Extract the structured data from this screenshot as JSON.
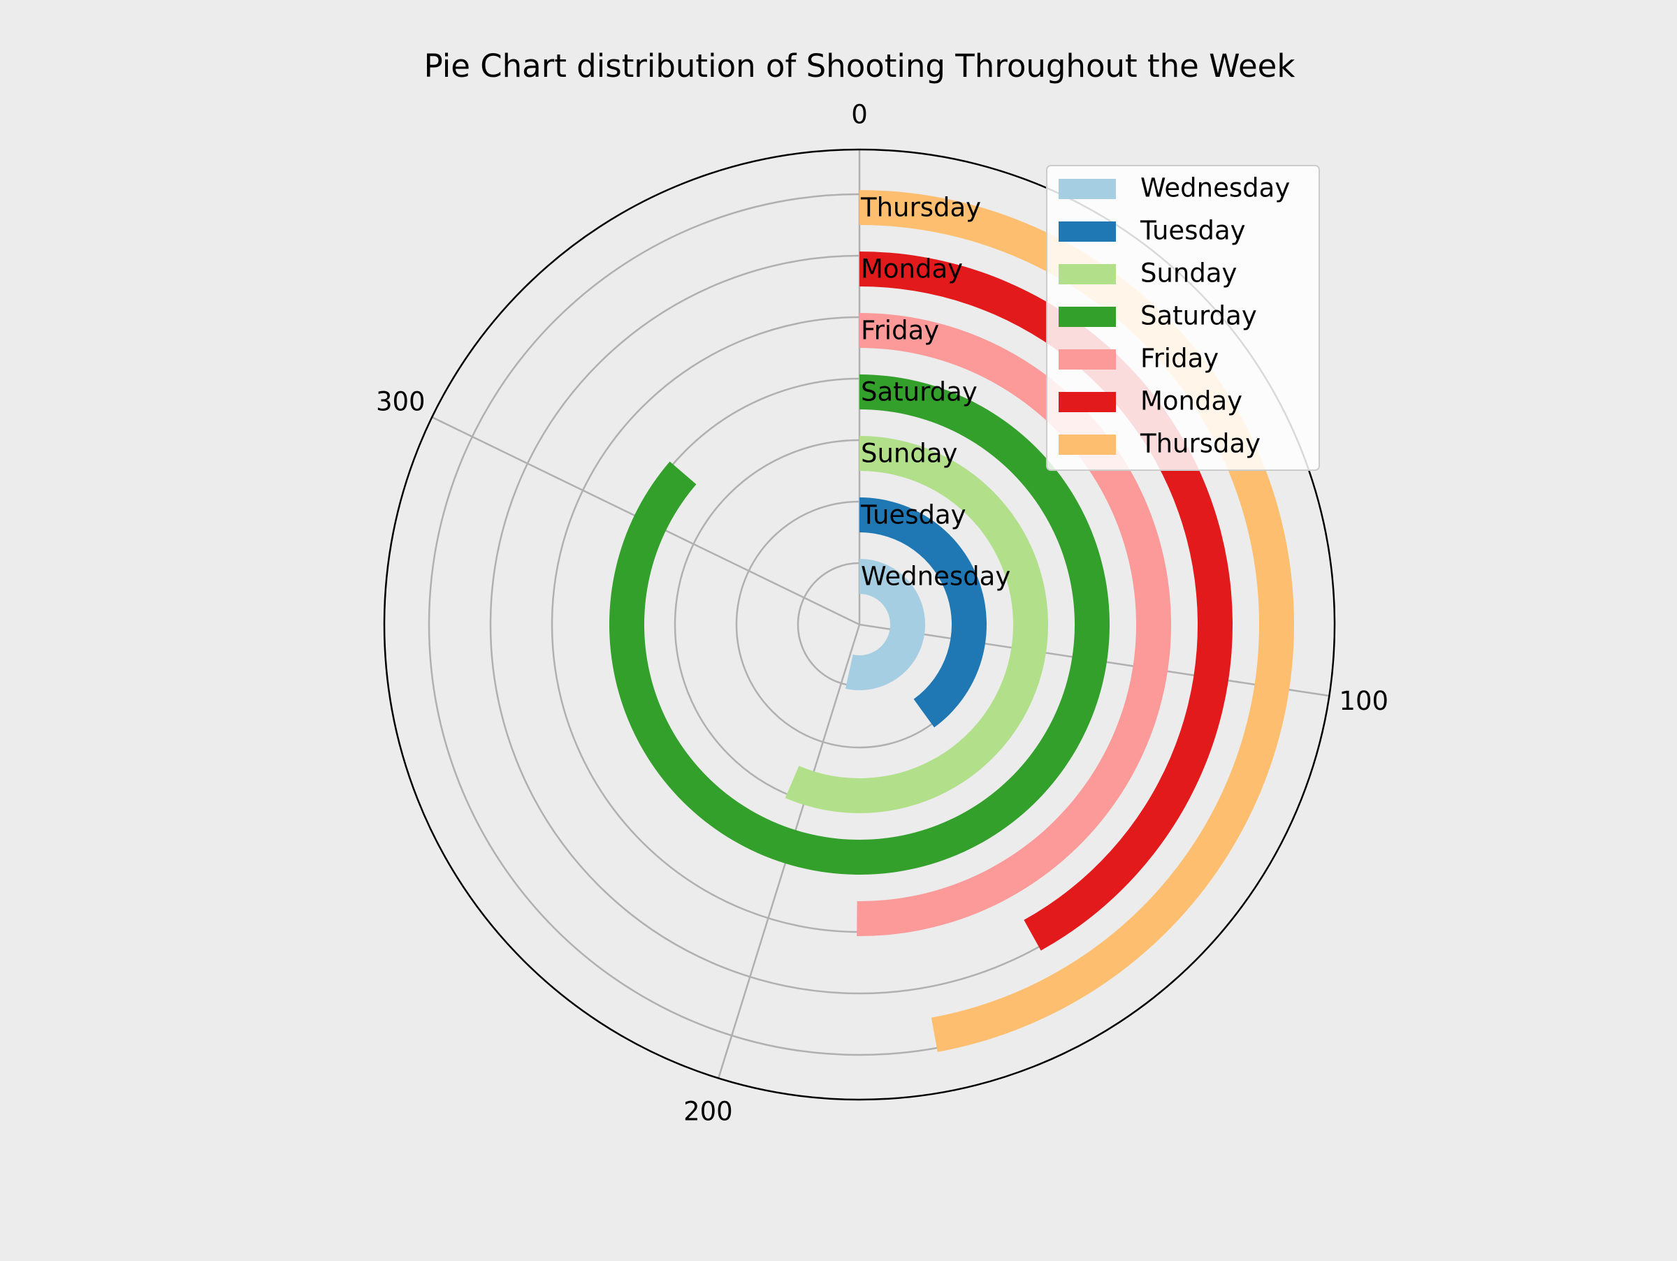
{
  "chart_data": {
    "type": "radial-bar",
    "title": "Pie Chart distribution of Shooting Throughout the Week",
    "angular_scale_max": 365,
    "angular_ticks": [
      {
        "value": 0,
        "label": "0"
      },
      {
        "value": 100,
        "label": "100"
      },
      {
        "value": 200,
        "label": "200"
      },
      {
        "value": 300,
        "label": "300"
      }
    ],
    "categories": [
      "Wednesday",
      "Tuesday",
      "Sunday",
      "Saturday",
      "Friday",
      "Monday",
      "Thursday"
    ],
    "values": [
      195,
      146,
      206,
      315,
      183,
      153,
      172
    ],
    "colors": [
      "#a6cee3",
      "#1f78b4",
      "#b2df8a",
      "#33a02c",
      "#fb9a99",
      "#e31a1c",
      "#fdbf6f"
    ],
    "grid": true,
    "legend": {
      "position": "upper right"
    }
  }
}
